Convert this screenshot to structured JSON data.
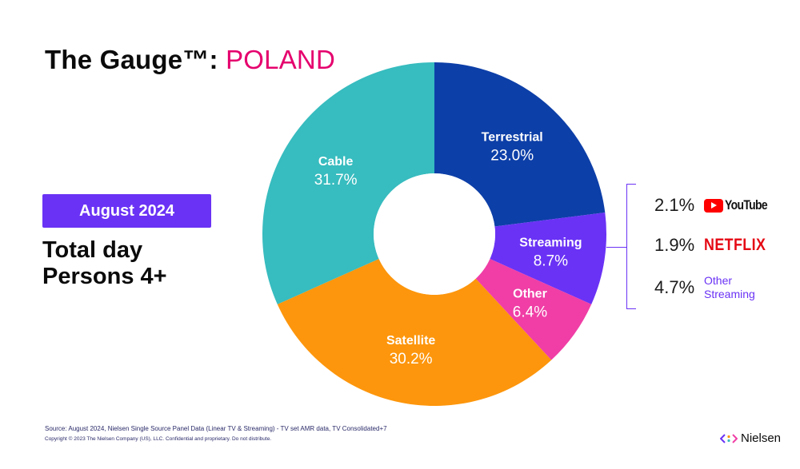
{
  "header": {
    "title_prefix": "The Gauge™:",
    "title_country": "POLAND"
  },
  "period_badge": "August 2024",
  "subtitle": {
    "line1": "Total day",
    "line2": "Persons 4+"
  },
  "colors": {
    "cable": "#37bcbf",
    "terrestrial": "#0d3fa8",
    "streaming": "#6a32f5",
    "other": "#f03ea6",
    "satellite": "#fd960c",
    "accent": "#e5006d"
  },
  "chart_data": {
    "type": "pie",
    "variant": "donut",
    "title": "The Gauge™: POLAND",
    "slices": [
      {
        "name": "Terrestrial",
        "value": 23.0,
        "label": "23.0%",
        "color": "#0d3fa8"
      },
      {
        "name": "Streaming",
        "value": 8.7,
        "label": "8.7%",
        "color": "#6a32f5"
      },
      {
        "name": "Other",
        "value": 6.4,
        "label": "6.4%",
        "color": "#f03ea6"
      },
      {
        "name": "Satellite",
        "value": 30.2,
        "label": "30.2%",
        "color": "#fd960c"
      },
      {
        "name": "Cable",
        "value": 31.7,
        "label": "31.7%",
        "color": "#37bcbf"
      }
    ],
    "streaming_breakdown": [
      {
        "name": "YouTube",
        "value": 2.1,
        "label": "2.1%"
      },
      {
        "name": "NETFLIX",
        "value": 1.9,
        "label": "1.9%"
      },
      {
        "name": "Other Streaming",
        "value": 4.7,
        "label": "4.7%"
      }
    ]
  },
  "breakdown": {
    "youtube_pct": "2.1%",
    "youtube_logo_text": "YouTube",
    "youtube_icon": "youtube-play-icon",
    "netflix_pct": "1.9%",
    "netflix_logo_text": "NETFLIX",
    "other_pct": "4.7%",
    "other_label": "Other Streaming"
  },
  "footer": {
    "source": "Source: August  2024, Nielsen Single Source Panel Data (Linear TV & Streaming) - TV set AMR data, TV Consolidated+7",
    "copyright": "Copyright © 2023 The Nielsen Company (US), LLC. Confidential and proprietary. Do not distribute.",
    "brand": "Nielsen",
    "brand_icon": "nielsen-brackets-icon"
  }
}
